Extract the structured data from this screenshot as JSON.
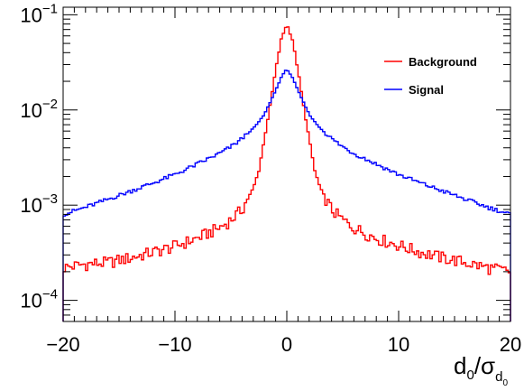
{
  "chart_data": {
    "type": "line",
    "title": "",
    "xlabel": {
      "base": "d",
      "base_sub": "0",
      "slash": "/",
      "sigma": "σ",
      "sigma_sub": "d",
      "sigma_sub_sub": "0"
    },
    "ylabel": "",
    "xlim": [
      -20,
      20
    ],
    "ylim": [
      6e-05,
      0.12
    ],
    "yscale": "log",
    "grid": false,
    "legend_position": "top-right",
    "x_ticks": [
      {
        "value": -20,
        "label": "−20"
      },
      {
        "value": -10,
        "label": "−10"
      },
      {
        "value": 0,
        "label": "0"
      },
      {
        "value": 10,
        "label": "10"
      },
      {
        "value": 20,
        "label": "20"
      }
    ],
    "y_ticks": [
      {
        "value": 0.0001,
        "base": "10",
        "exp": "−4"
      },
      {
        "value": 0.001,
        "base": "10",
        "exp": "−3"
      },
      {
        "value": 0.01,
        "base": "10",
        "exp": "−2"
      },
      {
        "value": 0.1,
        "base": "10",
        "exp": "−1"
      }
    ],
    "x": [
      -20,
      -18,
      -16,
      -14,
      -12,
      -10,
      -8,
      -6,
      -5,
      -4,
      -3,
      -2.5,
      -2,
      -1.5,
      -1,
      -0.5,
      0,
      0.5,
      1,
      1.5,
      2,
      2.5,
      3,
      4,
      5,
      6,
      8,
      10,
      12,
      14,
      16,
      18,
      20
    ],
    "series": [
      {
        "name": "Background",
        "color": "#ff0000",
        "values": [
          0.00022,
          0.00024,
          0.00025,
          0.00028,
          0.00032,
          0.00037,
          0.00045,
          0.00058,
          0.0007,
          0.0009,
          0.0015,
          0.0023,
          0.005,
          0.011,
          0.026,
          0.055,
          0.08,
          0.055,
          0.026,
          0.011,
          0.005,
          0.0023,
          0.0015,
          0.0009,
          0.0007,
          0.00058,
          0.00045,
          0.00038,
          0.00032,
          0.00028,
          0.00025,
          0.00022,
          0.0002
        ]
      },
      {
        "name": "Signal",
        "color": "#0000ff",
        "values": [
          0.0008,
          0.00095,
          0.00115,
          0.0014,
          0.0017,
          0.0021,
          0.0027,
          0.0035,
          0.0041,
          0.005,
          0.0064,
          0.0075,
          0.009,
          0.012,
          0.016,
          0.022,
          0.027,
          0.022,
          0.016,
          0.012,
          0.009,
          0.0075,
          0.0064,
          0.005,
          0.0041,
          0.0035,
          0.0027,
          0.0021,
          0.0017,
          0.0014,
          0.00115,
          0.00095,
          0.0008
        ]
      }
    ]
  }
}
